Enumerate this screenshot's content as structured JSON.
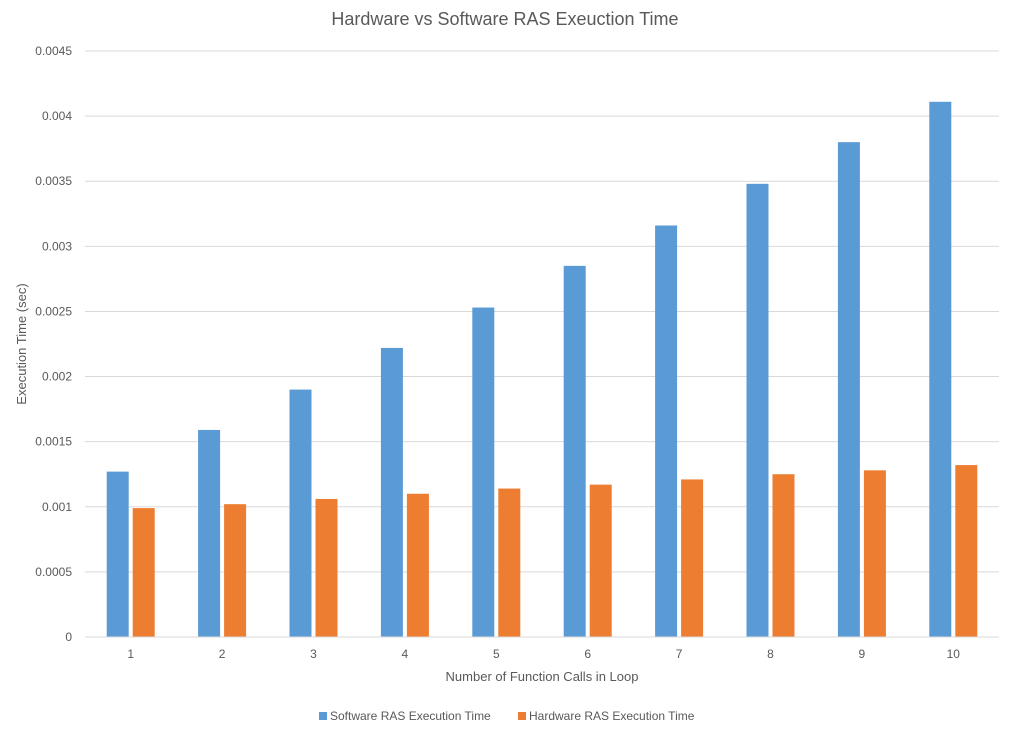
{
  "chart_data": {
    "type": "bar",
    "title": "Hardware vs Software RAS Exeuction Time",
    "xlabel": "Number of Function Calls in Loop",
    "ylabel": "Execution Time (sec)",
    "categories": [
      "1",
      "2",
      "3",
      "4",
      "5",
      "6",
      "7",
      "8",
      "9",
      "10"
    ],
    "series": [
      {
        "name": "Software RAS Execution Time",
        "color": "#5B9BD5",
        "values": [
          0.00127,
          0.00159,
          0.0019,
          0.00222,
          0.00253,
          0.00285,
          0.00316,
          0.00348,
          0.0038,
          0.00411
        ]
      },
      {
        "name": "Hardware RAS Execution Time",
        "color": "#ED7D31",
        "values": [
          0.00099,
          0.00102,
          0.00106,
          0.0011,
          0.00114,
          0.00117,
          0.00121,
          0.00125,
          0.00128,
          0.00132
        ]
      }
    ],
    "ylim": [
      0,
      0.0045
    ],
    "yticks": [
      "0",
      "0.0005",
      "0.001",
      "0.0015",
      "0.002",
      "0.0025",
      "0.003",
      "0.0035",
      "0.004",
      "0.0045"
    ],
    "grid": true,
    "legend_position": "bottom"
  }
}
